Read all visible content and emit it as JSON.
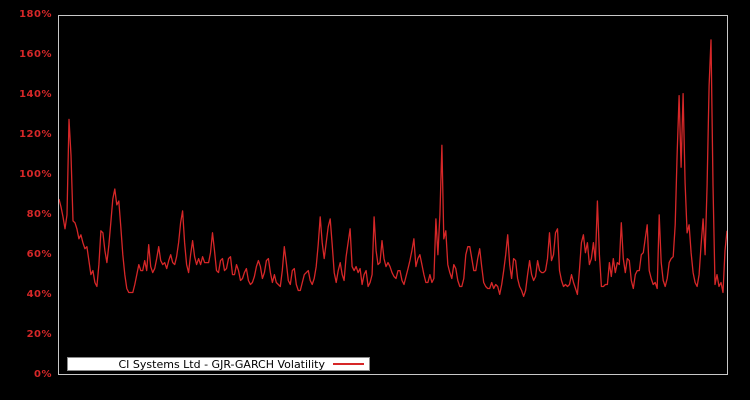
{
  "window": {
    "background": "#000000"
  },
  "chart_data": {
    "type": "line",
    "title": "",
    "xlabel": "",
    "ylabel": "",
    "ylim": [
      0,
      180
    ],
    "grid": false,
    "legend_position": "lower-left",
    "plot_border_color": "#c8c8c8",
    "tick_label_color": "#d62728",
    "background_color": "#000000",
    "ytick_values": [
      0,
      20,
      40,
      60,
      80,
      100,
      120,
      140,
      160,
      180
    ],
    "ytick_labels": [
      "0%",
      "20%",
      "40%",
      "60%",
      "80%",
      "100%",
      "120%",
      "140%",
      "160%",
      "180%"
    ],
    "xtick_labels": [],
    "y_unit": "percent",
    "legend": {
      "label": "CI Systems Ltd - GJR-GARCH Volatility",
      "background": "#ffffff",
      "text_color": "#000000",
      "sample_color": "#d62728"
    },
    "series": [
      {
        "name": "CI Systems Ltd - GJR-GARCH Volatility",
        "color": "#d62728",
        "values": [
          88,
          84,
          79,
          73,
          80,
          128,
          110,
          77,
          76,
          73,
          68,
          70,
          66,
          63,
          64,
          57,
          50,
          52,
          46,
          44,
          55,
          72,
          71,
          62,
          56,
          65,
          76,
          88,
          93,
          85,
          87,
          74,
          60,
          50,
          43,
          41,
          41,
          41,
          45,
          50,
          55,
          52,
          52,
          57,
          52,
          65,
          54,
          51,
          53,
          58,
          64,
          57,
          55,
          56,
          53,
          57,
          60,
          56,
          55,
          59,
          66,
          76,
          82,
          66,
          55,
          51,
          60,
          67,
          59,
          55,
          58,
          55,
          59,
          56,
          56,
          56,
          61,
          71,
          62,
          52,
          51,
          57,
          58,
          52,
          53,
          58,
          59,
          50,
          50,
          55,
          52,
          47,
          48,
          51,
          53,
          47,
          45,
          46,
          49,
          54,
          57,
          54,
          48,
          51,
          57,
          58,
          51,
          46,
          50,
          46,
          45,
          44,
          52,
          64,
          56,
          47,
          45,
          52,
          53,
          45,
          42,
          42,
          46,
          50,
          51,
          52,
          47,
          45,
          48,
          54,
          65,
          79,
          66,
          58,
          66,
          74,
          78,
          65,
          51,
          46,
          52,
          56,
          50,
          47,
          59,
          66,
          73,
          54,
          52,
          54,
          51,
          53,
          45,
          50,
          52,
          44,
          46,
          50,
          79,
          62,
          55,
          56,
          67,
          58,
          54,
          56,
          54,
          51,
          49,
          48,
          52,
          52,
          47,
          45,
          49,
          53,
          57,
          62,
          68,
          54,
          58,
          60,
          55,
          50,
          46,
          46,
          50,
          46,
          48,
          78,
          60,
          80,
          115,
          68,
          72,
          55,
          51,
          48,
          55,
          53,
          47,
          44,
          44,
          48,
          60,
          64,
          64,
          58,
          52,
          52,
          58,
          63,
          54,
          46,
          44,
          43,
          43,
          46,
          43,
          45,
          44,
          40,
          45,
          52,
          60,
          70,
          55,
          48,
          58,
          57,
          48,
          44,
          42,
          39,
          42,
          50,
          57,
          50,
          47,
          49,
          57,
          52,
          51,
          51,
          52,
          58,
          71,
          57,
          60,
          71,
          73,
          52,
          47,
          44,
          45,
          44,
          45,
          50,
          46,
          43,
          40,
          52,
          66,
          70,
          61,
          66,
          55,
          58,
          66,
          57,
          87,
          60,
          44,
          44,
          45,
          45,
          56,
          49,
          58,
          51,
          56,
          55,
          76,
          58,
          51,
          58,
          57,
          47,
          43,
          50,
          52,
          52,
          60,
          61,
          68,
          75,
          52,
          48,
          45,
          46,
          43,
          80,
          56,
          47,
          44,
          48,
          56,
          58,
          59,
          75,
          110,
          140,
          104,
          141,
          96,
          71,
          75,
          61,
          51,
          46,
          44,
          50,
          65,
          78,
          60,
          95,
          145,
          168,
          95,
          45,
          50,
          44,
          46,
          41,
          62,
          72
        ]
      }
    ]
  }
}
